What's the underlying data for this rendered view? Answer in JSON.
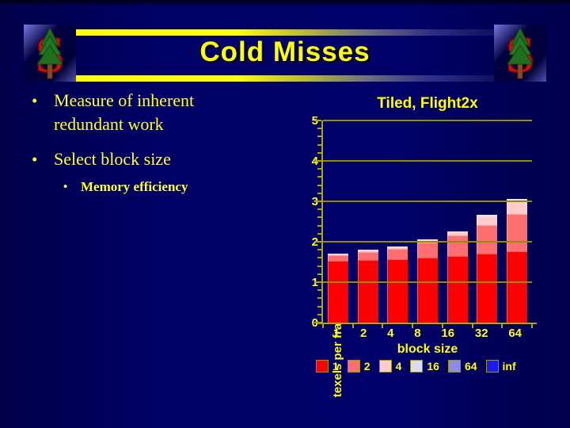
{
  "slide": {
    "title": "Cold Misses",
    "bullets": [
      {
        "marker": "•",
        "text": "Measure of inherent redundant work"
      },
      {
        "marker": "•",
        "text": "Select block size"
      },
      {
        "marker": "•",
        "text": "Memory efficiency"
      }
    ]
  },
  "colors": {
    "background": "#000066",
    "accent_yellow": "#ffff00",
    "gridline": "#8f8f00",
    "axis": "#aaaa00"
  },
  "chart_data": {
    "type": "bar",
    "stacked": true,
    "title": "Tiled, Flight2x",
    "xlabel": "block size",
    "ylabel": "texels per fragment",
    "ylim": [
      0,
      5
    ],
    "ytick_interval": 1,
    "yminor_interval": 0.2,
    "grid": true,
    "legend_position": "bottom",
    "categories": [
      "1",
      "2",
      "4",
      "8",
      "16",
      "32",
      "64"
    ],
    "series": [
      {
        "name": "1",
        "color": "#ff0000",
        "values": [
          1.52,
          1.55,
          1.57,
          1.6,
          1.64,
          1.7,
          1.76
        ]
      },
      {
        "name": "2",
        "color": "#ff6f6f",
        "values": [
          0.15,
          0.2,
          0.25,
          0.38,
          0.52,
          0.72,
          0.92
        ]
      },
      {
        "name": "4",
        "color": "#ffcccc",
        "values": [
          0.03,
          0.05,
          0.06,
          0.07,
          0.1,
          0.2,
          0.33
        ]
      },
      {
        "name": "16",
        "color": "#ddddf2",
        "values": [
          0,
          0,
          0,
          0,
          0,
          0.04,
          0.05
        ]
      },
      {
        "name": "64",
        "color": "#8c8ce0",
        "values": [
          0,
          0,
          0,
          0,
          0,
          0,
          0
        ]
      },
      {
        "name": "inf",
        "color": "#1a1af0",
        "values": [
          0,
          0,
          0,
          0,
          0,
          0,
          0
        ]
      }
    ],
    "bar_totals": [
      1.7,
      1.8,
      1.88,
      2.05,
      2.26,
      2.66,
      3.06
    ],
    "legend_labels": [
      "1",
      "2",
      "4",
      "16",
      "64",
      "inf"
    ]
  }
}
